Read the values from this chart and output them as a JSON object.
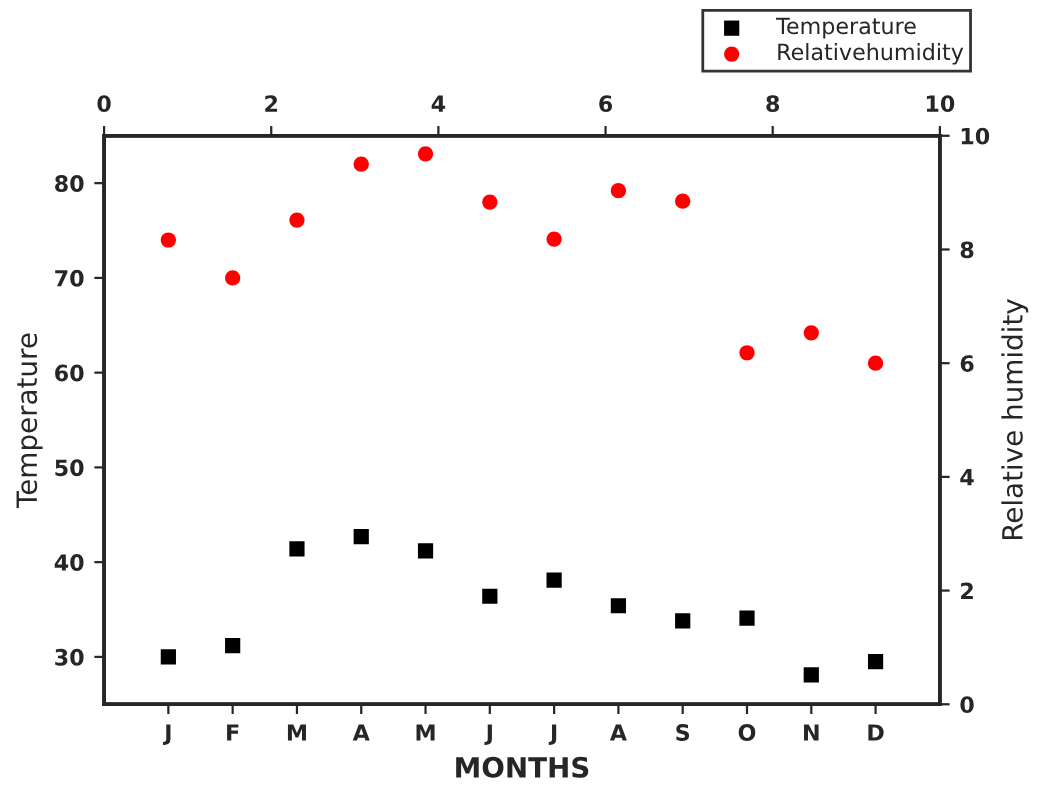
{
  "chart_data": {
    "type": "scatter",
    "xlabel": "MONTHS",
    "ylabel": "Temperature",
    "y2label": "Relative humidity",
    "categories": [
      "J",
      "F",
      "M",
      "A",
      "M",
      "J",
      "J",
      "A",
      "S",
      "O",
      "N",
      "D"
    ],
    "series": [
      {
        "name": "Temperature",
        "color": "#000000",
        "marker": "square",
        "values": [
          30,
          31.2,
          41.4,
          42.7,
          41.2,
          36.4,
          38.1,
          35.4,
          33.8,
          34.1,
          28.1,
          29.5
        ]
      },
      {
        "name": "Relativehumidity",
        "color": "#ff0000",
        "marker": "circle",
        "values": [
          74,
          70,
          76.1,
          82,
          83.1,
          78,
          74.1,
          79.2,
          78.1,
          62.1,
          64.2,
          61
        ]
      }
    ],
    "ylim": [
      25,
      85
    ],
    "yticks": [
      30,
      40,
      50,
      60,
      70,
      80
    ],
    "y2lim": [
      0,
      10
    ],
    "y2ticks": [
      0,
      2,
      4,
      6,
      8,
      10
    ],
    "x2lim": [
      0,
      10
    ],
    "x2ticks": [
      0,
      2,
      4,
      6,
      8,
      10
    ],
    "legend": "top right",
    "grid": false
  }
}
